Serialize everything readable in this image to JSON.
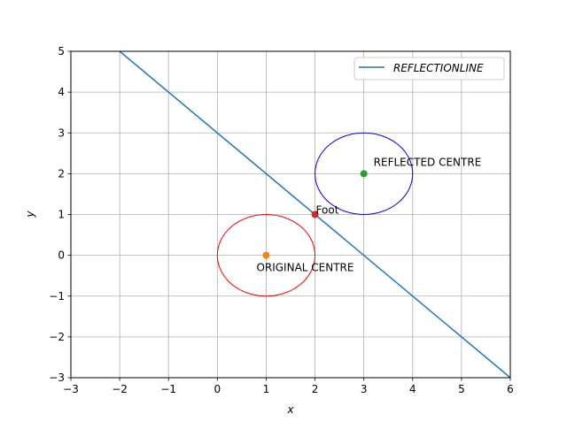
{
  "chart_data": {
    "type": "line",
    "xlabel": "x",
    "ylabel": "y",
    "xlim": [
      -3,
      6
    ],
    "ylim": [
      -3,
      5
    ],
    "xticks": [
      -3,
      -2,
      -1,
      0,
      1,
      2,
      3,
      4,
      5,
      6
    ],
    "yticks": [
      -3,
      -2,
      -1,
      0,
      1,
      2,
      3,
      4,
      5
    ],
    "xtick_labels": [
      "−3",
      "−2",
      "−1",
      "0",
      "1",
      "2",
      "3",
      "4",
      "5",
      "6"
    ],
    "ytick_labels": [
      "−3",
      "−2",
      "−1",
      "0",
      "1",
      "2",
      "3",
      "4",
      "5"
    ],
    "grid": true,
    "legend_position": "upper-right",
    "series": [
      {
        "name": "REFLECTIONLINE",
        "kind": "line",
        "color": "#1f77b4",
        "x": [
          -2,
          6
        ],
        "y": [
          5,
          -3
        ]
      }
    ],
    "circles": [
      {
        "label": "original-circle",
        "cx": 1,
        "cy": 0,
        "r": 1,
        "color": "#ff0000"
      },
      {
        "label": "reflected-circle",
        "cx": 3,
        "cy": 2,
        "r": 1,
        "color": "#0000ff"
      }
    ],
    "points": [
      {
        "label": "ORIGINAL CENTRE",
        "x": 1,
        "y": 0,
        "color": "#ff7f0e",
        "label_placement": "below"
      },
      {
        "label": "Foot",
        "x": 2,
        "y": 1,
        "color": "#d62728",
        "label_placement": "right"
      },
      {
        "label": "REFLECTED CENTRE",
        "x": 3,
        "y": 2,
        "color": "#2ca02c",
        "label_placement": "upper-right"
      }
    ]
  }
}
